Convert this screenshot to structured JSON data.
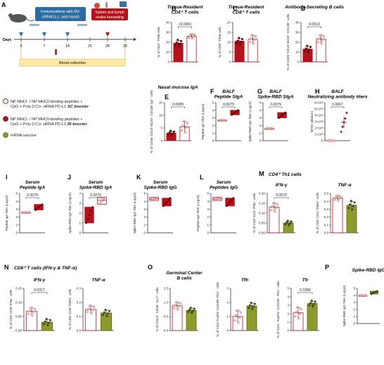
{
  "schematic": {
    "letter": "A",
    "box1": [
      "Immunizations with NV-",
      "siRNA (s.c. and nasal)"
    ],
    "box2": [
      "Spleen and lymph",
      "nodes harvesting"
    ],
    "days_label": "Days",
    "days": [
      "0",
      "7",
      "14",
      "21",
      "28",
      "35"
    ],
    "blood": "Blood collection"
  },
  "legend": [
    {
      "lines": [
        "NP MHCI- / NP MHCII-binding peptides +",
        "CpG + Poly (I:C)+ siRNA PD-L1"
      ],
      "tag": "SC booster",
      "color": "#ffffff",
      "stroke": "#b5121b"
    },
    {
      "lines": [
        "NP MHCI- / NP MHCII-binding peptides +",
        "CpG + Poly (I:C)+ siRNA PD-L1"
      ],
      "tag": "IN booster",
      "color": "#b5121b",
      "stroke": "#7a0a10"
    },
    {
      "lines": [
        "mRNA vaccine"
      ],
      "tag": "",
      "color": "#8e9a2b",
      "stroke": "#5c6418"
    }
  ],
  "colors": {
    "sc": "#ffffff",
    "in": "#b5121b",
    "mrna": "#8e9a2b",
    "outline_red": "#b5121b",
    "outline_green": "#5c6418"
  },
  "chart_data": [
    {
      "id": "B",
      "type": "bar",
      "title": [
        "Tissue-Resident",
        "CD4⁺ T cells"
      ],
      "ylabel": "% of CD4⁺ TRM cells",
      "yticks": [
        "0",
        "10",
        "20",
        "30",
        "40"
      ],
      "ylim": [
        0,
        40
      ],
      "categories": [
        "IN booster",
        "SC booster"
      ],
      "values": [
        19,
        26
      ],
      "errors": [
        3,
        2
      ],
      "pvalue": "<0.0001"
    },
    {
      "id": "C",
      "type": "bar",
      "title": [
        "Tissue-Resident",
        "CD8⁺ T cells"
      ],
      "ylabel": "% of CD8⁺ TRM cells",
      "yticks": [
        "0",
        "5",
        "10",
        "15",
        "20"
      ],
      "ylim": [
        0,
        20
      ],
      "categories": [
        "IN booster",
        "SC booster"
      ],
      "values": [
        10.5,
        11.5
      ],
      "errors": [
        1.5,
        2
      ],
      "pvalue": ""
    },
    {
      "id": "D",
      "type": "bar",
      "title": [
        "Antibody-Secreting B cells"
      ],
      "ylabel": "% of CD45⁺CD19⁺B220⁺ CD138⁺ cells",
      "yticks": [
        "0",
        "10",
        "20",
        "30",
        "40"
      ],
      "ylim": [
        0,
        40
      ],
      "categories": [
        "IN booster",
        "SC booster"
      ],
      "values": [
        13,
        23
      ],
      "errors": [
        3,
        4
      ],
      "pvalue": "0.0013"
    },
    {
      "id": "E",
      "type": "bar",
      "title": [
        "Nasal mucosa IgA"
      ],
      "ylabel": "% of CD45⁺CD19⁺B220⁺ CD138⁺IgA⁺ cells",
      "yticks": [
        "0",
        "5",
        "10",
        "15"
      ],
      "ylim": [
        0,
        15
      ],
      "categories": [
        "IN booster",
        "SC booster"
      ],
      "values": [
        3,
        5.5
      ],
      "errors": [
        0.8,
        2
      ],
      "pvalue": "0.0089"
    },
    {
      "id": "F",
      "type": "box",
      "title": [
        "BALF",
        "Peptide SIgA"
      ],
      "ylabel": "Peptide IgA Titer (Log10)",
      "yticks": [
        "0",
        "1",
        "2",
        "3",
        "4",
        "5"
      ],
      "ylim": [
        0,
        5
      ],
      "categories": [
        "SC booster",
        "IN booster"
      ],
      "values": [
        2.7,
        3.7
      ],
      "ranges": [
        [
          2.7,
          2.7
        ],
        [
          3.4,
          4.0
        ]
      ],
      "pvalue": "0.0079"
    },
    {
      "id": "G",
      "type": "box",
      "title": [
        "BALF",
        "Spike-RBD SIgA"
      ],
      "ylabel": "Spike-RBD IgA Titer (Log10)",
      "yticks": [
        "0",
        "1",
        "2",
        "3",
        "4",
        "5"
      ],
      "ylim": [
        0,
        5
      ],
      "categories": [
        "SC booster",
        "IN booster"
      ],
      "values": [
        1.6,
        3.4
      ],
      "ranges": [
        [
          1.6,
          1.6
        ],
        [
          3.0,
          3.7
        ]
      ],
      "pvalue": "0.0079"
    },
    {
      "id": "H",
      "type": "scatter",
      "title": [
        "BALF",
        "Neutralizing antibody titers"
      ],
      "ylabel": "NT50 (dilution)",
      "yticks": [
        "0",
        "1×10³",
        "2×10³",
        "3×10³",
        "4×10³",
        "5×10³",
        "6×10³"
      ],
      "ylim": [
        0,
        6000
      ],
      "categories": [
        "SC booster",
        "IN booster"
      ],
      "values": [
        0,
        2900
      ],
      "errors": [
        0,
        900
      ],
      "pvalue": "0.0067"
    },
    {
      "id": "I",
      "type": "box",
      "title": [
        "Serum",
        "Peptide IgA"
      ],
      "ylabel": "Peptide IgA Titer (Log10)",
      "yticks": [
        "0",
        "1",
        "2",
        "3",
        "4",
        "5"
      ],
      "ylim": [
        0,
        5
      ],
      "categories": [
        "SC booster",
        "IN booster"
      ],
      "values": [
        2.6,
        3.2
      ],
      "ranges": [
        [
          2.6,
          2.6
        ],
        [
          2.9,
          3.6
        ]
      ],
      "pvalue": "0.0079"
    },
    {
      "id": "J",
      "type": "box",
      "title": [
        "Serum",
        "Spike-RBD IgA"
      ],
      "ylabel": "Spike-RBD IgA Titer (Log10)",
      "yticks": [
        "0",
        "1",
        "2",
        "3",
        "4"
      ],
      "ylim": [
        0,
        4
      ],
      "categories": [
        "IN booster",
        "SC booster"
      ],
      "values": [
        1.8,
        3.3
      ],
      "ranges": [
        [
          1.0,
          2.6
        ],
        [
          2.9,
          3.6
        ]
      ],
      "pvalue": "0.0079"
    },
    {
      "id": "K",
      "type": "box",
      "title": [
        "Serum",
        "Spike-RBD IgG"
      ],
      "ylabel": "Spike-RBD IgG Titer (Log10)",
      "yticks": [
        "0",
        "1",
        "2",
        "3",
        "4",
        "5"
      ],
      "ylim": [
        0,
        5
      ],
      "categories": [
        "SC booster",
        "IN booster"
      ],
      "values": [
        4.3,
        4.0
      ],
      "ranges": [
        [
          4.1,
          4.5
        ],
        [
          3.4,
          4.4
        ]
      ],
      "pvalue": ""
    },
    {
      "id": "L",
      "type": "box",
      "title": [
        "Serum",
        "Peptides IgG"
      ],
      "ylabel": "Peptide IgG Titer (Log10)",
      "yticks": [
        "0",
        "1",
        "2",
        "3",
        "4",
        "5"
      ],
      "ylim": [
        0,
        5
      ],
      "categories": [
        "SC booster",
        "IN booster"
      ],
      "values": [
        4.3,
        4.1
      ],
      "ranges": [
        [
          4.1,
          4.5
        ],
        [
          3.4,
          4.4
        ]
      ],
      "pvalue": ""
    },
    {
      "id": "M",
      "type": "bar",
      "title": [
        "IFN-γ"
      ],
      "ylabel": "% of CD3⁺CD4⁺IFNγ⁺ cells",
      "yticks": [
        "0.00",
        "0.05",
        "0.10",
        "0.15",
        "0.20"
      ],
      "ylim": [
        0,
        0.2
      ],
      "categories": [
        "SC booster",
        "mRNA vaccine"
      ],
      "values": [
        0.13,
        0.05
      ],
      "errors": [
        0.02,
        0.01
      ],
      "pvalue": "0.0079"
    },
    {
      "id": "M2",
      "type": "bar",
      "title": [
        "TNF-α"
      ],
      "ylabel": "% of CD3⁺CD4⁺TNFα⁺ cells",
      "yticks": [
        "0.0",
        "0.1",
        "0.2",
        "0.3",
        "0.4",
        "0.5"
      ],
      "ylim": [
        0,
        0.5
      ],
      "categories": [
        "SC booster",
        "mRNA vaccine"
      ],
      "values": [
        0.44,
        0.35
      ],
      "errors": [
        0.03,
        0.05
      ],
      "pvalue": ""
    },
    {
      "id": "N",
      "type": "bar",
      "title": [
        "IFN-γ"
      ],
      "ylabel": "% of CD3⁺CD8⁺IFNγ⁺ cells",
      "yticks": [
        "0.00",
        "0.05",
        "0.10",
        "0.15"
      ],
      "ylim": [
        0,
        0.15
      ],
      "categories": [
        "SC booster",
        "mRNA vaccine"
      ],
      "values": [
        0.068,
        0.03
      ],
      "errors": [
        0.012,
        0.01
      ],
      "pvalue": "0.0317"
    },
    {
      "id": "N2",
      "type": "bar",
      "title": [
        "TNF-α"
      ],
      "ylabel": "% of CD3⁺CD8⁺TNFα⁺ cells",
      "yticks": [
        "0.0",
        "0.1",
        "0.2",
        "0.3"
      ],
      "ylim": [
        0,
        0.3
      ],
      "categories": [
        "SC booster",
        "mRNA vaccine"
      ],
      "values": [
        0.15,
        0.125
      ],
      "errors": [
        0.025,
        0.02
      ],
      "pvalue": ""
    },
    {
      "id": "O",
      "type": "bar",
      "title": [
        "Germinal Center",
        "B cells"
      ],
      "ylabel": "% of CD19⁺ CD95⁺ GL7⁺ cells",
      "yticks": [
        "0.0",
        "0.5",
        "1.0",
        "1.5"
      ],
      "ylim": [
        0,
        1.5
      ],
      "categories": [
        "SC booster",
        "mRNA vaccine"
      ],
      "values": [
        0.88,
        0.72
      ],
      "errors": [
        0.12,
        0.08
      ],
      "pvalue": ""
    },
    {
      "id": "O2",
      "type": "bar",
      "title": [
        "Tfh"
      ],
      "ylabel": "% of CD4⁺FoxP3⁻CXCR5⁺PD1⁺ cells",
      "yticks": [
        "0",
        "1",
        "2",
        "3"
      ],
      "ylim": [
        0,
        3
      ],
      "categories": [
        "SC booster",
        "mRNA vaccine"
      ],
      "values": [
        1.0,
        1.75
      ],
      "errors": [
        0.4,
        0.2
      ],
      "pvalue": ""
    },
    {
      "id": "O3",
      "type": "bar",
      "title": [
        "Tfr"
      ],
      "ylabel": "% of CD4⁺ FoxP3⁺ CXCR5⁺ PD1⁺ cells",
      "yticks": [
        "0",
        "1",
        "2",
        "3",
        "4",
        "5"
      ],
      "ylim": [
        0,
        5
      ],
      "categories": [
        "SC booster",
        "mRNA vaccine"
      ],
      "values": [
        2.1,
        3.2
      ],
      "errors": [
        0.6,
        0.3
      ],
      "pvalue": "0.0396"
    },
    {
      "id": "P",
      "type": "box",
      "title": [
        "Spike-RBD IgG"
      ],
      "ylabel": "Spike-RBD IgG Titer (Log10)",
      "yticks": [
        "0",
        "1",
        "2",
        "3",
        "4",
        "5"
      ],
      "ylim": [
        0,
        5
      ],
      "categories": [
        "SC booster",
        "mRNA vaccine"
      ],
      "values": [
        4.0,
        4.4
      ],
      "ranges": [
        [
          4.0,
          4.0
        ],
        [
          4.2,
          4.6
        ]
      ],
      "pvalue": ""
    }
  ],
  "section_titles": {
    "M": {
      "letter": "M",
      "text": "CD4⁺ Th1 cells"
    },
    "N": {
      "letter": "N",
      "text": "CD8⁺ T cells (IFN-γ & TNF-α)"
    },
    "O": {
      "letter": "O",
      "text": ""
    },
    "O2": {
      "letter": "",
      "text": ""
    },
    "P": {
      "letter": "P",
      "text": ""
    }
  }
}
